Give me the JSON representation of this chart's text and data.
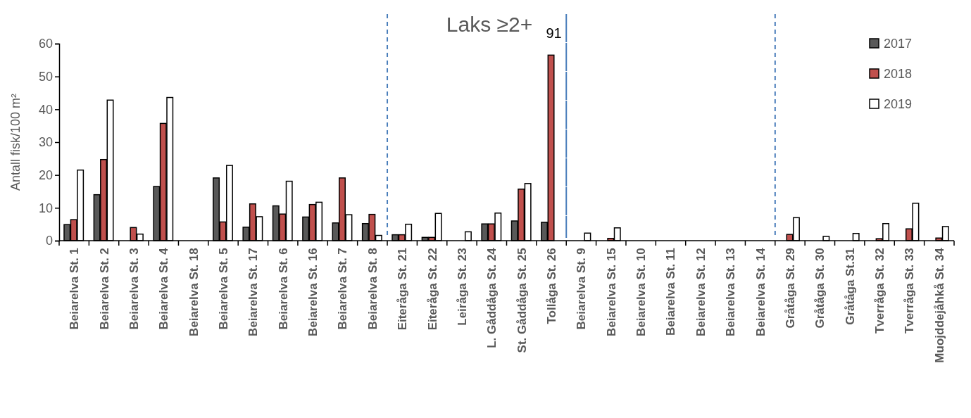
{
  "chart_data": {
    "type": "bar",
    "title": "Laks ≥2+",
    "ylabel": "Antall fisk/100 m²",
    "categories": [
      "Beiarelva St. 1",
      "Beiarelva St. 2",
      "Beiarelva St. 3",
      "Beiarelva St. 4",
      "Beiarelva St. 18",
      "Beiarelva St. 5",
      "Beiarelva St. 17",
      "Beiarelva St. 6",
      "Beiarelva St. 16",
      "Beiarelva St. 7",
      "Beiarelva St. 8",
      "Eiteråga St. 21",
      "Eiteråga St. 22",
      "Leiråga St. 23",
      "L. Gåddåga St. 24",
      "St. Gåddåga St. 25",
      "Tollåga St. 26",
      "Beiarelva St. 9",
      "Beiarelva St. 15",
      "Beiarelva St. 10",
      "Beiarelva St. 11",
      "Beiarelva St. 12",
      "Beiarelva St. 13",
      "Beiarelva St. 14",
      "Gråtåga St. 29",
      "Gråtåga St. 30",
      "Gråtåga St.31",
      "Tverråga St. 32",
      "Tverråga St. 33",
      "Muojddejåhkå St. 34"
    ],
    "series": [
      {
        "name": "2017",
        "color": "#595959",
        "values": [
          4.9,
          14,
          0,
          16.5,
          0,
          19.1,
          4.1,
          10.6,
          7.2,
          5.4,
          5.2,
          1.8,
          1,
          0,
          5.1,
          6,
          5.6,
          0,
          0,
          0,
          0,
          0,
          0,
          0,
          0,
          0,
          0,
          0,
          0,
          0
        ]
      },
      {
        "name": "2018",
        "color": "#c0504d",
        "values": [
          6.4,
          24.7,
          4,
          35.7,
          0,
          5.7,
          11.2,
          8.1,
          11,
          19.1,
          8,
          1.8,
          1,
          0,
          5.1,
          15.7,
          56.5,
          0,
          0.7,
          0,
          0,
          0,
          0,
          0,
          1.9,
          0,
          0,
          0.6,
          3.6,
          0.8
        ]
      },
      {
        "name": "2019",
        "color": "#ffffff",
        "values": [
          21.5,
          42.8,
          2,
          43.6,
          0,
          22.9,
          7.3,
          18.1,
          11.7,
          7.9,
          1.6,
          5,
          8.3,
          2.7,
          8.4,
          17.4,
          null,
          2.3,
          3.9,
          0,
          0,
          0,
          0,
          0,
          7,
          1.3,
          2.2,
          5.2,
          11.4,
          4.3
        ]
      }
    ],
    "annotations": [
      "91"
    ],
    "ylim": [
      0,
      60
    ],
    "yticks": [
      0,
      10,
      20,
      30,
      40,
      50,
      60
    ],
    "grid": false,
    "legend": "top right"
  }
}
